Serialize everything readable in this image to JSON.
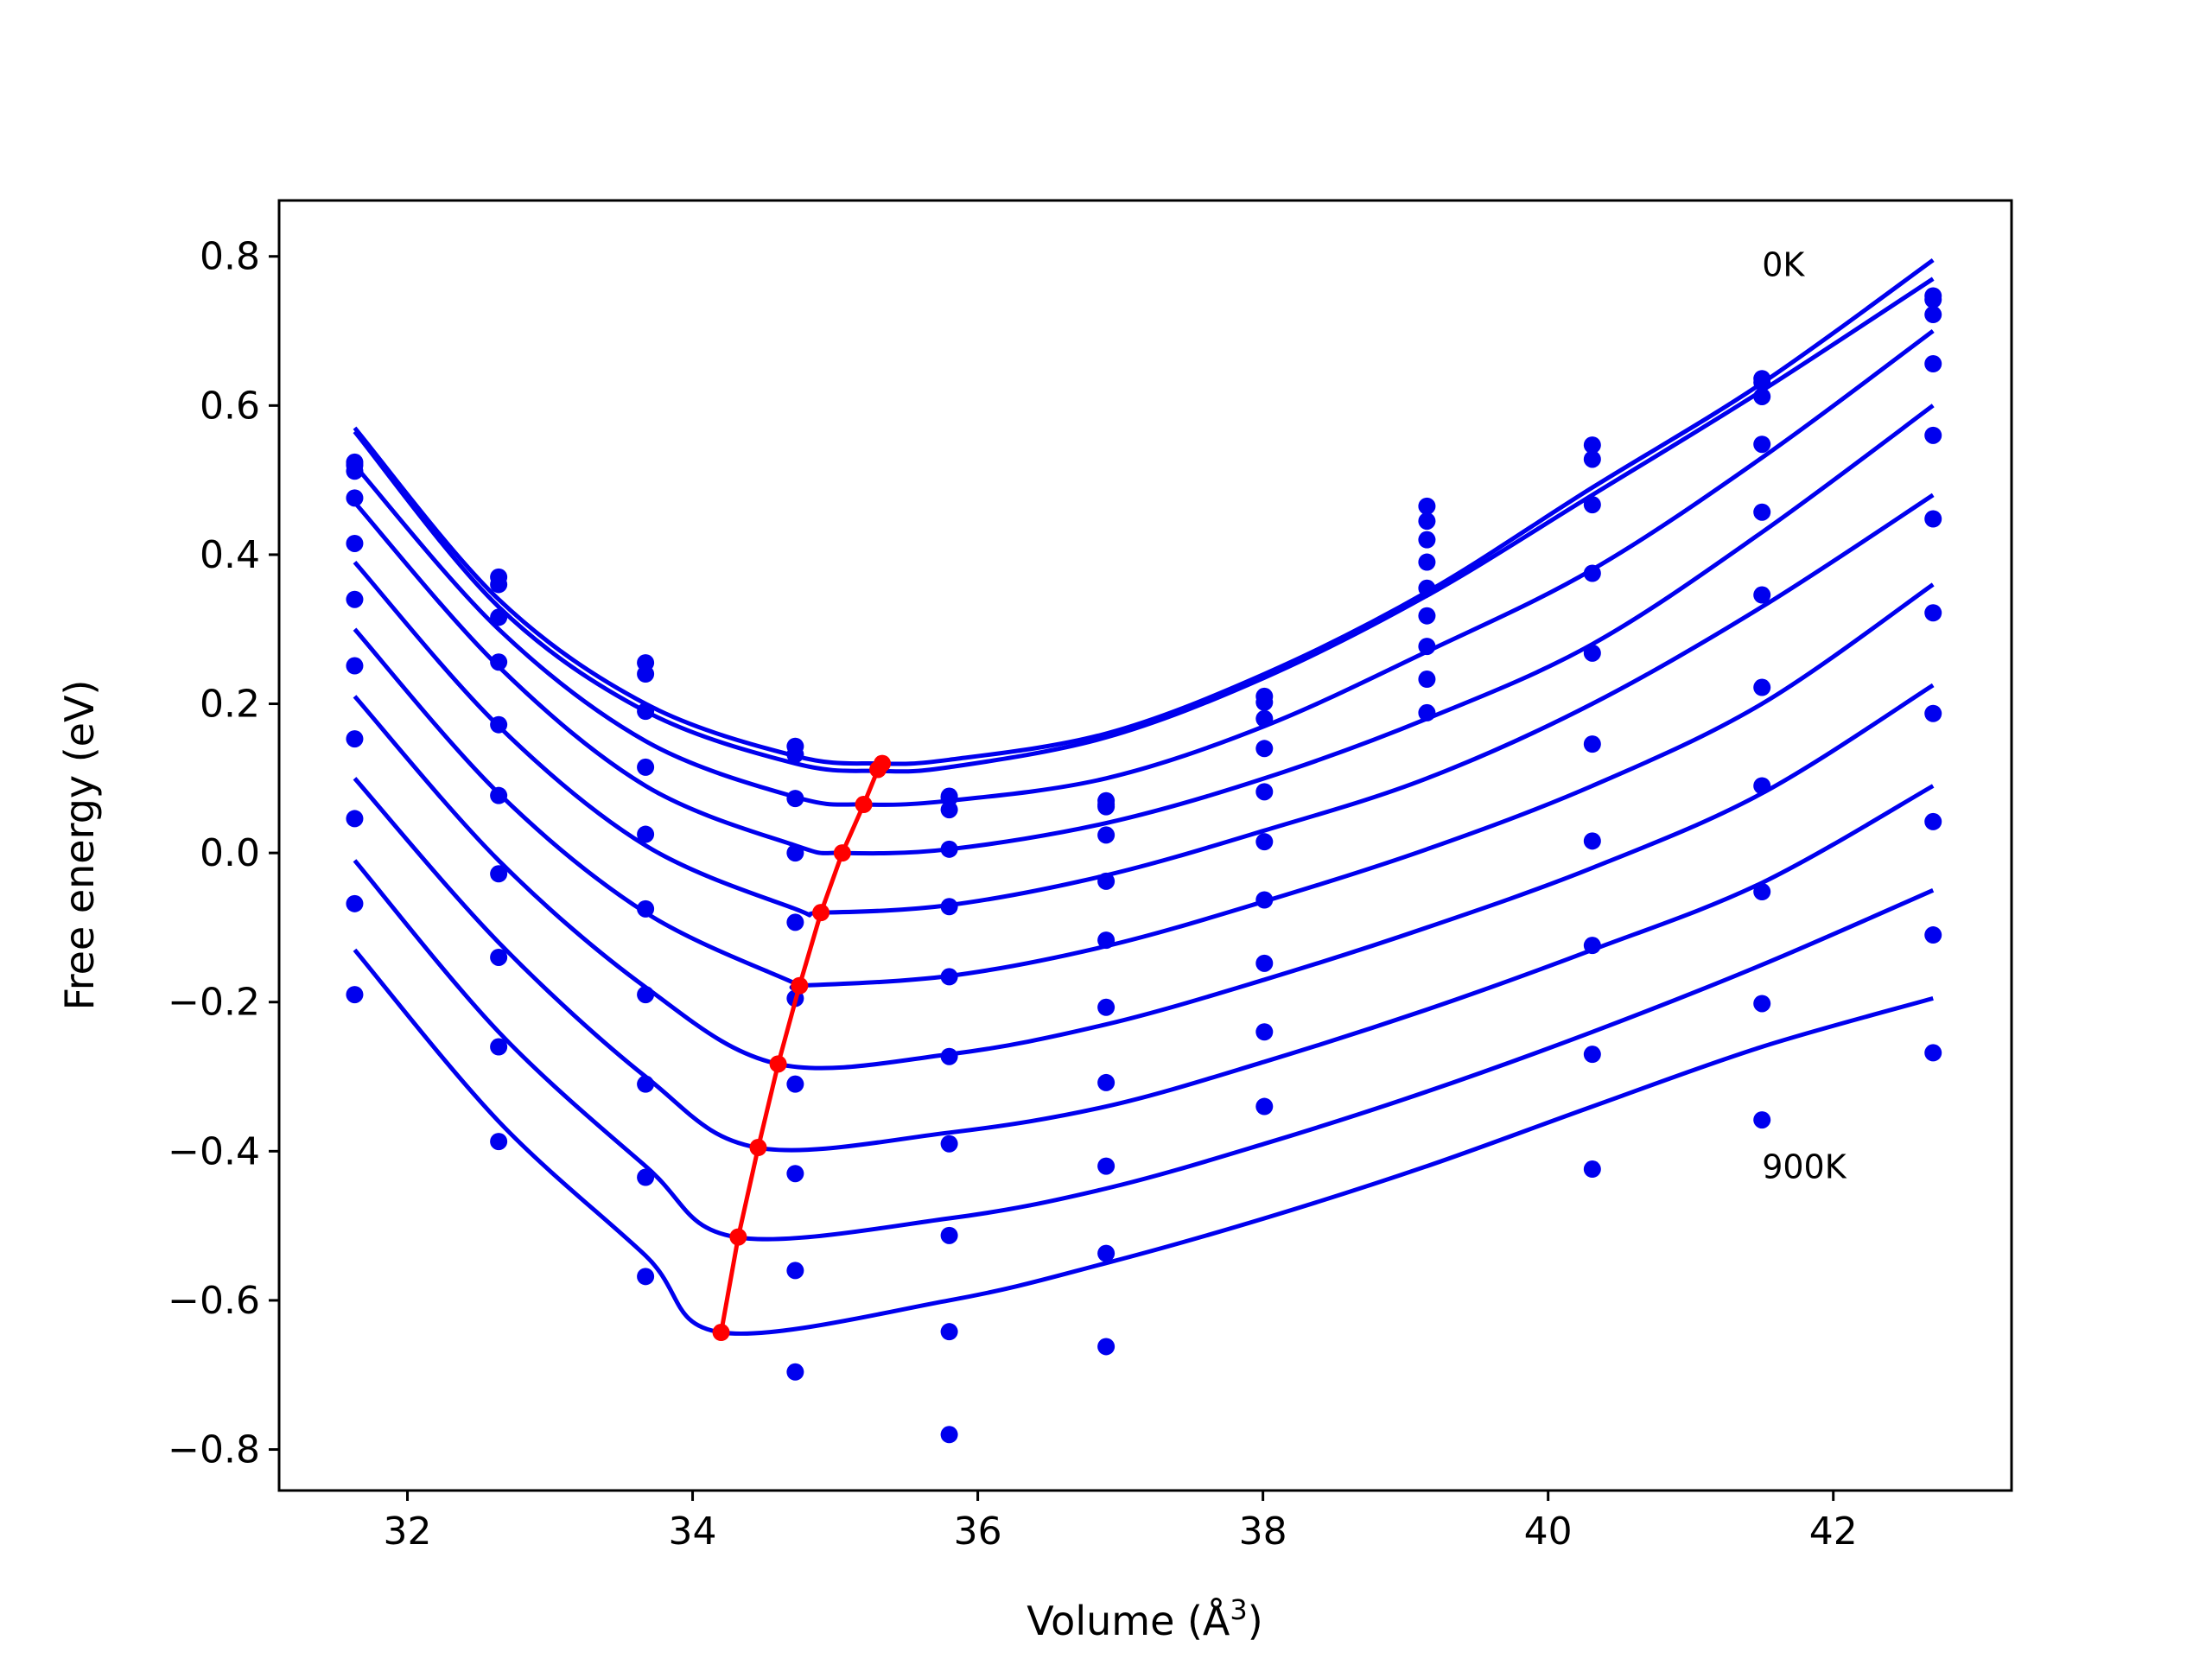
{
  "chart_data": {
    "type": "line",
    "xlabel": "Volume (Å",
    "xlabel_sup": "3",
    "xlabel_close": ")",
    "ylabel": "Free energy (eV)",
    "xlim": [
      31.1,
      43.25
    ],
    "ylim": [
      -0.855,
      0.875
    ],
    "grid": false,
    "xticks": [
      32,
      34,
      36,
      38,
      40,
      42
    ],
    "xtick_labels": [
      "32",
      "34",
      "36",
      "38",
      "40",
      "42"
    ],
    "yticks": [
      0.8,
      0.6,
      0.4,
      0.2,
      0.0,
      -0.2,
      -0.4,
      -0.6,
      -0.8
    ],
    "ytick_labels": [
      "0.8",
      "0.6",
      "0.4",
      "0.2",
      "0.0",
      "−0.2",
      "−0.4",
      "−0.6",
      "−0.8"
    ],
    "annotations": [
      {
        "text": "0K",
        "x": 41.5,
        "y": 0.79
      },
      {
        "text": "900K",
        "x": 41.5,
        "y": -0.42
      }
    ],
    "colors": {
      "fit": "#0000ee",
      "points": "#0000ee",
      "minimum": "#ff0000",
      "axes": "#000000"
    },
    "volumes": [
      31.63,
      32.64,
      33.67,
      34.72,
      35.8,
      36.9,
      38.01,
      39.15,
      40.31,
      41.5,
      42.7
    ],
    "fit_curves": [
      {
        "x": [
          31.63,
          32.64,
          33.67,
          34.72,
          35.3,
          35.8,
          36.9,
          38.01,
          39.15,
          40.31,
          41.5,
          42.7
        ],
        "y": [
          0.57,
          0.34,
          0.2,
          0.13,
          0.12,
          0.125,
          0.16,
          0.24,
          0.35,
          0.49,
          0.63,
          0.795
        ]
      },
      {
        "x": [
          31.63,
          32.64,
          33.67,
          34.72,
          35.3,
          35.8,
          36.9,
          38.01,
          39.15,
          40.31,
          41.5,
          42.7
        ],
        "y": [
          0.565,
          0.33,
          0.19,
          0.12,
          0.11,
          0.115,
          0.155,
          0.235,
          0.345,
          0.48,
          0.62,
          0.77
        ]
      },
      {
        "x": [
          31.63,
          32.64,
          33.67,
          34.72,
          35.2,
          35.8,
          36.9,
          38.01,
          39.15,
          40.31,
          41.5,
          42.7
        ],
        "y": [
          0.52,
          0.3,
          0.15,
          0.075,
          0.065,
          0.07,
          0.1,
          0.17,
          0.27,
          0.38,
          0.53,
          0.7
        ]
      },
      {
        "x": [
          31.63,
          32.64,
          33.67,
          34.72,
          35.05,
          35.8,
          36.9,
          38.01,
          39.15,
          40.31,
          41.5,
          42.7
        ],
        "y": [
          0.47,
          0.25,
          0.09,
          0.01,
          0.0,
          0.005,
          0.04,
          0.1,
          0.18,
          0.28,
          0.43,
          0.6
        ]
      },
      {
        "x": [
          31.63,
          32.64,
          33.67,
          34.72,
          34.9,
          35.8,
          36.9,
          38.01,
          39.15,
          40.31,
          41.5,
          42.7
        ],
        "y": [
          0.39,
          0.17,
          0.01,
          -0.075,
          -0.08,
          -0.07,
          -0.03,
          0.03,
          0.1,
          0.2,
          0.33,
          0.48
        ]
      },
      {
        "x": [
          31.63,
          32.64,
          33.67,
          34.72,
          34.75,
          35.8,
          36.9,
          38.01,
          39.15,
          40.31,
          41.5,
          42.7
        ],
        "y": [
          0.3,
          0.08,
          -0.08,
          -0.175,
          -0.178,
          -0.165,
          -0.125,
          -0.065,
          0.005,
          0.09,
          0.2,
          0.36
        ]
      },
      {
        "x": [
          31.63,
          32.64,
          33.67,
          34.6,
          35.8,
          36.9,
          38.01,
          39.15,
          40.31,
          41.5,
          42.7
        ],
        "y": [
          0.21,
          -0.01,
          -0.18,
          -0.283,
          -0.27,
          -0.23,
          -0.17,
          -0.1,
          -0.02,
          0.08,
          0.225
        ]
      },
      {
        "x": [
          31.63,
          32.64,
          33.67,
          34.45,
          35.8,
          36.9,
          38.01,
          39.15,
          40.31,
          41.5,
          42.7
        ],
        "y": [
          0.1,
          -0.12,
          -0.3,
          -0.395,
          -0.375,
          -0.34,
          -0.28,
          -0.21,
          -0.13,
          -0.04,
          0.09
        ]
      },
      {
        "x": [
          31.63,
          32.64,
          33.67,
          34.3,
          35.8,
          36.9,
          38.01,
          39.15,
          40.31,
          41.5,
          42.7
        ],
        "y": [
          -0.01,
          -0.24,
          -0.42,
          -0.515,
          -0.49,
          -0.45,
          -0.39,
          -0.32,
          -0.24,
          -0.15,
          -0.05
        ]
      },
      {
        "x": [
          31.63,
          32.64,
          33.67,
          34.2,
          35.8,
          36.9,
          38.01,
          39.15,
          40.31,
          41.5,
          42.7
        ],
        "y": [
          -0.13,
          -0.36,
          -0.54,
          -0.643,
          -0.6,
          -0.55,
          -0.49,
          -0.42,
          -0.34,
          -0.26,
          -0.195
        ]
      }
    ],
    "data_points": {
      "x": [
        31.63,
        32.64,
        33.67,
        34.72,
        35.8,
        36.9,
        38.01,
        39.15,
        40.31,
        41.5,
        42.7
      ],
      "series": [
        {
          "y": [
            0.52,
            0.37,
            0.255,
            0.143,
            0.076,
            0.07,
            0.21,
            0.465,
            0.547,
            0.636,
            0.747
          ]
        },
        {
          "y": [
            0.524,
            0.36,
            0.24,
            0.132,
            0.074,
            0.062,
            0.202,
            0.445,
            0.528,
            0.631,
            0.742
          ]
        },
        {
          "y": [
            0.512,
            0.316,
            0.19,
            0.073,
            0.058,
            0.065,
            0.18,
            0.42,
            0.467,
            0.612,
            0.722
          ]
        },
        {
          "y": [
            0.476,
            0.256,
            0.115,
            0.0,
            0.005,
            0.024,
            0.14,
            0.39,
            0.375,
            0.548,
            0.656
          ]
        },
        {
          "y": [
            0.415,
            0.172,
            0.025,
            -0.093,
            -0.072,
            -0.038,
            0.082,
            0.355,
            0.268,
            0.457,
            0.56
          ]
        },
        {
          "y": [
            0.34,
            0.077,
            -0.075,
            -0.195,
            -0.166,
            -0.117,
            0.015,
            0.318,
            0.146,
            0.346,
            0.448
          ]
        },
        {
          "y": [
            0.251,
            -0.028,
            -0.19,
            -0.31,
            -0.273,
            -0.207,
            -0.063,
            0.277,
            0.016,
            0.222,
            0.322
          ]
        },
        {
          "y": [
            0.153,
            -0.14,
            -0.31,
            -0.43,
            -0.39,
            -0.308,
            -0.148,
            0.233,
            -0.124,
            0.09,
            0.187
          ]
        },
        {
          "y": [
            0.046,
            -0.26,
            -0.435,
            -0.56,
            -0.513,
            -0.42,
            -0.24,
            0.188,
            -0.27,
            -0.052,
            0.042
          ]
        },
        {
          "y": [
            -0.068,
            -0.387,
            -0.568,
            -0.696,
            -0.642,
            -0.537,
            -0.34,
            null,
            -0.424,
            -0.202,
            -0.11
          ]
        },
        {
          "y": [
            -0.19,
            null,
            null,
            null,
            -0.78,
            -0.662,
            null,
            null,
            null,
            -0.358,
            -0.268
          ]
        }
      ]
    },
    "minimum_path": {
      "x": [
        34.2,
        34.32,
        34.46,
        34.6,
        34.75,
        34.9,
        35.05,
        35.2,
        35.3,
        35.33
      ],
      "y": [
        -0.643,
        -0.515,
        -0.395,
        -0.283,
        -0.178,
        -0.08,
        0.0,
        0.065,
        0.112,
        0.12
      ]
    }
  }
}
